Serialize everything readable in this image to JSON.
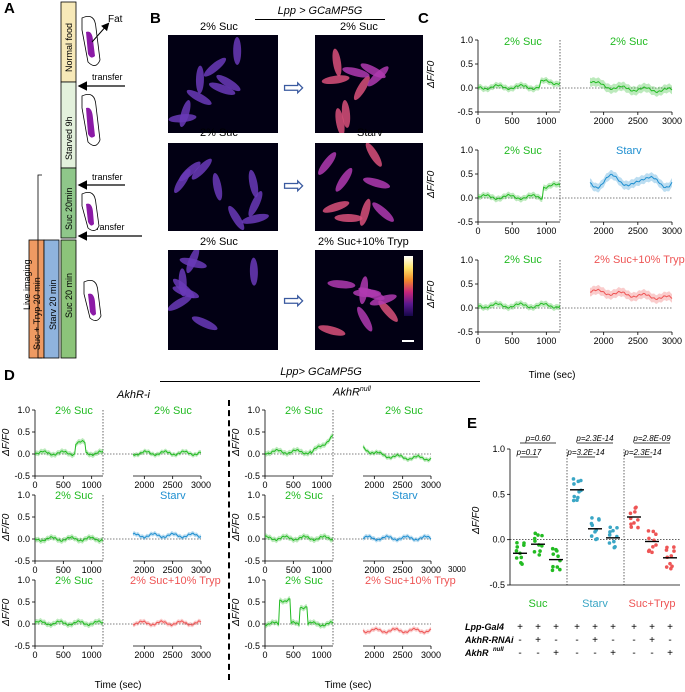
{
  "panels": {
    "a": "A",
    "b": "B",
    "c": "C",
    "d": "D",
    "e": "E"
  },
  "colors": {
    "suc": "#22bb22",
    "starv": "#1f8fd0",
    "tryp": "#ee5555",
    "starv_bar": "#3aa6c5",
    "normal_food": "#f7e9b8",
    "starved": "#e3f1dc",
    "suc20": "#8fc78a",
    "orange": "#ef9a62",
    "blue": "#8fb3dd",
    "green": "#8cc47a",
    "fat": "#8b1aa6"
  },
  "panel_a": {
    "normal_food": "Normal food",
    "fat": "Fat",
    "transfer_1": "transfer",
    "starved": "Starved 9h",
    "transfer_2": "transfer",
    "suc20": "Suc 20min",
    "transfer_3": "transfer",
    "live_imaging": "Live imaging",
    "suc_tryp": "Suc + Tryp 20 min",
    "starv20": "Starv 20 min",
    "suc20b": "Suc 20 min"
  },
  "panel_b": {
    "title": "Lpp > GCaMP5G",
    "row1_left": "2% Suc",
    "row1_right": "2% Suc",
    "row2_left": "2% Suc",
    "row2_right": "Starv",
    "row3_left": "2% Suc",
    "row3_right": "2% Suc+10% Tryp"
  },
  "panel_c": {
    "ylabel": "ΔF/F0",
    "xlabel": "Time (sec)",
    "row1_left": "2% Suc",
    "row1_right": "2% Suc",
    "row2_left": "2% Suc",
    "row2_right": "Starv",
    "row3_left": "2% Suc",
    "row3_right": "2% Suc+10% Tryp",
    "yticks": [
      "1.0",
      "0.5",
      "0.0",
      "-0.5"
    ],
    "xticks_left": [
      "0",
      "500",
      "1000"
    ],
    "xticks_right": [
      "2000",
      "2500",
      "3000"
    ]
  },
  "panel_d": {
    "title": "Lpp> GCaMP5G",
    "left_title": "AkhR-i",
    "right_title": "AkhR",
    "right_title_sup": "null",
    "ylabel": "ΔF/F0",
    "xlabel": "Time (sec)",
    "l1_left": "2% Suc",
    "l1_right": "2% Suc",
    "l2_left": "2% Suc",
    "l2_right": "Starv",
    "l3_left": "2% Suc",
    "l3_right": "2% Suc+10% Tryp",
    "r1_left": "2% Suc",
    "r1_right": "2% Suc",
    "r2_left": "2% Suc",
    "r2_right": "Starv",
    "r3_left": "2% Suc",
    "r3_right": "2% Suc+10% Tryp",
    "stray_tick": "3000"
  },
  "panel_e": {
    "ylabel": "ΔF/F0",
    "yticks": [
      "1.0",
      "0.5",
      "0.0",
      "-0.5"
    ],
    "p_suc_1": "p=0.60",
    "p_suc_2": "p=0.17",
    "p_starv_1": "p=2.3E-14",
    "p_starv_2": "p=3.2E-14",
    "p_tryp_1": "p=2.8E-09",
    "p_tryp_2": "p=2.3E-14",
    "group_suc": "Suc",
    "group_starv": "Starv",
    "group_tryp": "Suc+Tryp",
    "row1": "Lpp-Gal4",
    "row2": "AkhR-RNAi",
    "row3": "AkhR",
    "row3_sup": "null",
    "row1_signs": [
      "+",
      "+",
      "+",
      "+",
      "+",
      "+",
      "+",
      "+",
      "+"
    ],
    "row2_signs": [
      "-",
      "+",
      "-",
      "-",
      "+",
      "-",
      "-",
      "+",
      "-"
    ],
    "row3_signs": [
      "-",
      "-",
      "+",
      "-",
      "-",
      "+",
      "-",
      "-",
      "+"
    ]
  }
}
